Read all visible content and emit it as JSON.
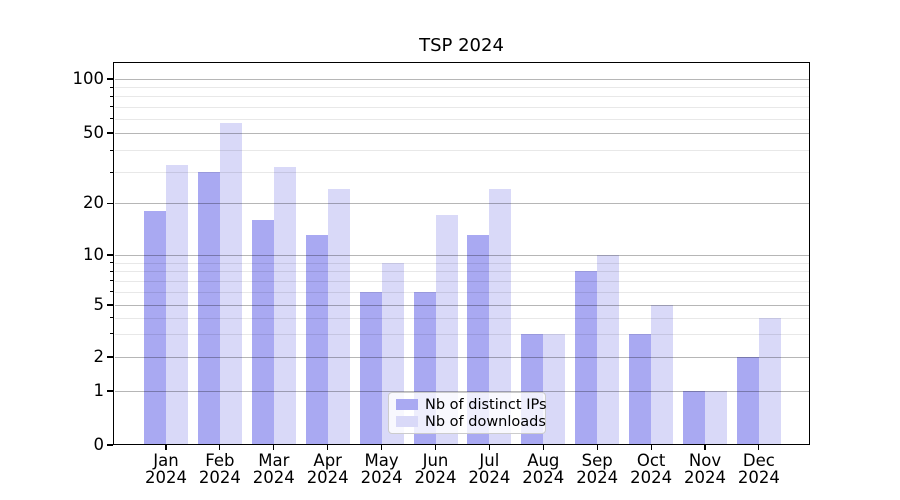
{
  "title": "TSP 2024",
  "chart_data": {
    "type": "bar",
    "title": "TSP 2024",
    "categories": [
      "Jan",
      "Feb",
      "Mar",
      "Apr",
      "May",
      "Jun",
      "Jul",
      "Aug",
      "Sep",
      "Oct",
      "Nov",
      "Dec"
    ],
    "year_label": "2024",
    "series": [
      {
        "name": "Nb of distinct IPs",
        "color": "#a9a9f2",
        "values": [
          18,
          30,
          16,
          13,
          6,
          6,
          13,
          3,
          8,
          3,
          1,
          2
        ]
      },
      {
        "name": "Nb of downloads",
        "color": "#d9d9f8",
        "values": [
          33,
          57,
          32,
          24,
          9,
          17,
          24,
          3,
          10,
          5,
          1,
          4
        ]
      }
    ],
    "xlabel": "",
    "ylabel": "",
    "y_axis": {
      "scale": "symlog",
      "major_ticks": [
        0,
        1,
        2,
        5,
        10,
        20,
        50,
        100
      ],
      "minor_ticks": [
        3,
        4,
        6,
        7,
        8,
        9,
        30,
        40,
        60,
        70,
        80,
        90
      ],
      "ylim": [
        0,
        125
      ]
    },
    "grid": true,
    "legend_position": "lower center"
  },
  "colors": {
    "grid_major": "rgba(0,0,0,0.285)",
    "grid_minor": "rgba(0,0,0,0.09)",
    "axis": "#000000",
    "legend_border": "#cccccc",
    "legend_bg": "rgba(255,255,255,0.8)",
    "text": "#000000"
  }
}
